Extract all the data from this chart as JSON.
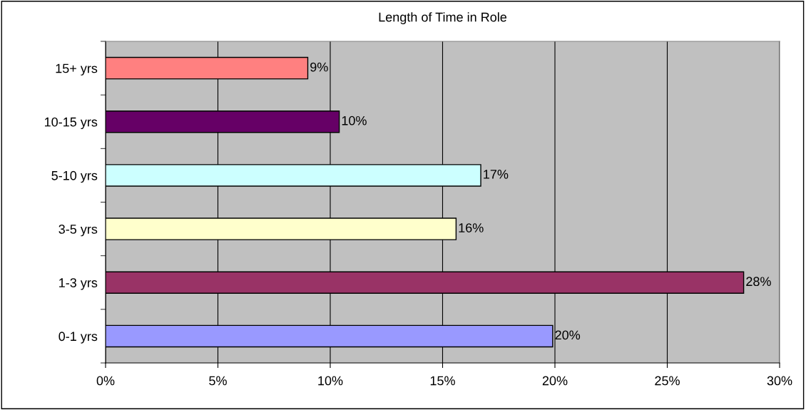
{
  "chart_data": {
    "type": "bar",
    "orientation": "horizontal",
    "title": "Length of Time in Role",
    "categories": [
      "15+ yrs",
      "10-15 yrs",
      "5-10 yrs",
      "3-5 yrs",
      "1-3 yrs",
      "0-1 yrs"
    ],
    "values": [
      9.0,
      10.4,
      16.7,
      15.6,
      28.4,
      19.9
    ],
    "value_labels": [
      "9%",
      "10%",
      "17%",
      "16%",
      "28%",
      "20%"
    ],
    "colors": [
      "#ff8080",
      "#660066",
      "#ccffff",
      "#ffffcc",
      "#993366",
      "#9999ff"
    ],
    "xlim": [
      0,
      30
    ],
    "xticks": [
      {
        "value": 0,
        "label": "0%"
      },
      {
        "value": 5,
        "label": "5%"
      },
      {
        "value": 10,
        "label": "10%"
      },
      {
        "value": 15,
        "label": "15%"
      },
      {
        "value": 20,
        "label": "20%"
      },
      {
        "value": 25,
        "label": "25%"
      },
      {
        "value": 30,
        "label": "30%"
      }
    ],
    "grid": "x",
    "legend": false
  }
}
